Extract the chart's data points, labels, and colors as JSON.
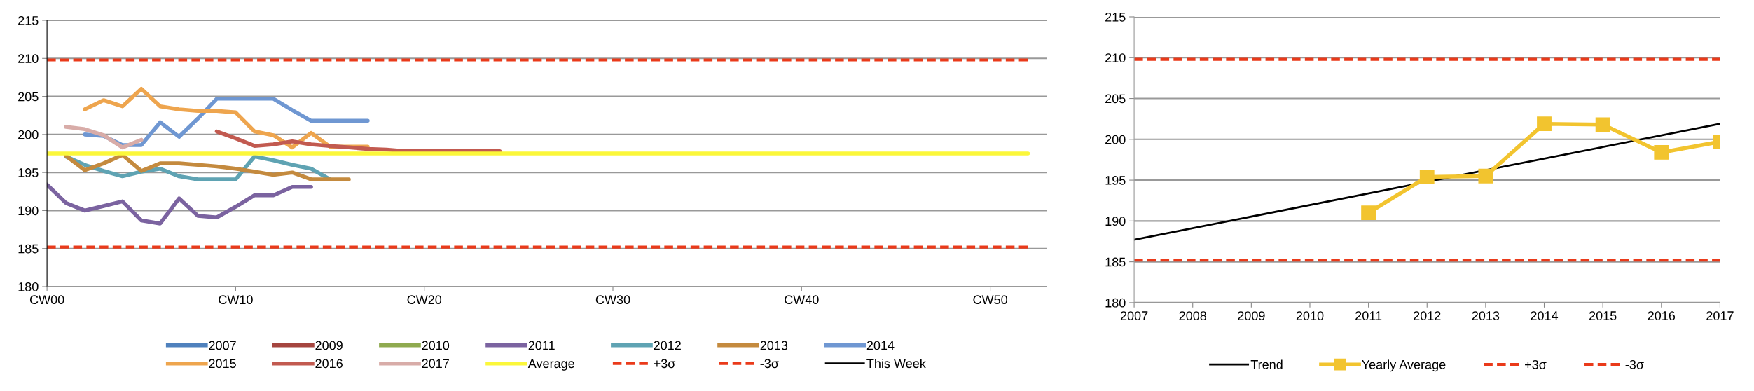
{
  "chart_data": [
    {
      "type": "line",
      "categories": [
        "CW00",
        null,
        null,
        null,
        null,
        null,
        null,
        null,
        null,
        null,
        "CW10",
        null,
        null,
        null,
        null,
        null,
        null,
        null,
        null,
        null,
        "CW20",
        null,
        null,
        null,
        null,
        null,
        null,
        null,
        null,
        null,
        "CW30",
        null,
        null,
        null,
        null,
        null,
        null,
        null,
        null,
        null,
        "CW40",
        null,
        null,
        null,
        null,
        null,
        null,
        null,
        null,
        null,
        "CW50",
        null,
        null
      ],
      "ylim": [
        180,
        215
      ],
      "yticks": [
        180,
        185,
        190,
        195,
        200,
        205,
        210,
        215
      ],
      "grid": "y",
      "legend": "bottom",
      "series": [
        {
          "name": "2007",
          "color": "#4f81bd",
          "values": [
            null,
            null,
            null,
            null,
            null,
            null,
            null,
            null,
            null,
            null,
            null,
            null,
            null,
            null,
            null,
            null,
            null,
            null,
            null,
            null,
            null,
            null,
            null,
            null,
            null,
            null,
            null,
            null,
            null,
            null,
            null,
            null,
            null,
            null,
            null,
            null,
            null,
            null,
            null,
            null,
            null,
            null,
            null,
            null,
            null,
            null,
            null,
            null,
            null,
            null,
            null,
            null,
            null
          ]
        },
        {
          "name": "2009",
          "color": "#a5453f",
          "values": [
            null,
            null,
            null,
            null,
            null,
            null,
            null,
            null,
            null,
            null,
            null,
            null,
            null,
            null,
            null,
            null,
            null,
            null,
            null,
            null,
            null,
            null,
            null,
            null,
            null,
            null,
            null,
            null,
            null,
            null,
            null,
            null,
            null,
            null,
            null,
            null,
            null,
            null,
            null,
            null,
            null,
            null,
            null,
            null,
            null,
            null,
            null,
            null,
            null,
            null,
            null,
            null,
            null
          ]
        },
        {
          "name": "2010",
          "color": "#8faa4f",
          "values": [
            null,
            null,
            null,
            null,
            null,
            null,
            null,
            null,
            null,
            null,
            null,
            null,
            null,
            null,
            null,
            null,
            null,
            null,
            null,
            null,
            null,
            null,
            null,
            null,
            null,
            null,
            null,
            null,
            null,
            null,
            null,
            null,
            null,
            null,
            null,
            null,
            null,
            null,
            null,
            null,
            null,
            null,
            null,
            null,
            null,
            null,
            null,
            null,
            null,
            null,
            null,
            null,
            null
          ]
        },
        {
          "name": "2011",
          "color": "#7b63a0",
          "values": [
            193.4,
            191.0,
            190.0,
            190.6,
            191.2,
            188.7,
            188.3,
            191.6,
            189.3,
            189.1,
            190.5,
            192.0,
            192.0,
            193.1,
            193.1,
            null,
            null,
            null,
            null,
            null,
            null,
            null,
            null,
            null,
            null,
            null,
            null,
            null,
            null,
            null,
            null,
            null,
            null,
            null,
            null,
            null,
            null,
            null,
            null,
            null,
            null,
            null,
            null,
            null,
            null,
            null,
            null,
            null,
            null,
            null,
            null,
            null,
            null
          ]
        },
        {
          "name": "2012",
          "color": "#5fa3b3",
          "values": [
            null,
            197.1,
            196.0,
            195.2,
            194.5,
            195.1,
            195.5,
            194.5,
            194.1,
            194.1,
            194.1,
            197.1,
            196.6,
            196.0,
            195.5,
            194.1,
            null,
            null,
            null,
            null,
            null,
            null,
            null,
            null,
            null,
            null,
            null,
            null,
            null,
            null,
            null,
            null,
            null,
            null,
            null,
            null,
            null,
            null,
            null,
            null,
            null,
            null,
            null,
            null,
            null,
            null,
            null,
            null,
            null,
            null,
            null,
            null,
            null
          ]
        },
        {
          "name": "2013",
          "color": "#c48a3e",
          "values": [
            null,
            197.2,
            195.3,
            196.2,
            197.3,
            195.2,
            196.2,
            196.2,
            196.0,
            195.8,
            195.5,
            195.1,
            194.7,
            195.0,
            194.1,
            194.1,
            194.1,
            null,
            null,
            null,
            null,
            null,
            null,
            null,
            null,
            null,
            null,
            null,
            null,
            null,
            null,
            null,
            null,
            null,
            null,
            null,
            null,
            null,
            null,
            null,
            null,
            null,
            null,
            null,
            null,
            null,
            null,
            null,
            null,
            null,
            null,
            null,
            null
          ]
        },
        {
          "name": "2014",
          "color": "#6f97d2",
          "values": [
            null,
            null,
            200.0,
            199.8,
            198.6,
            198.6,
            201.6,
            199.7,
            202.1,
            204.7,
            204.7,
            204.7,
            204.7,
            203.2,
            201.8,
            201.8,
            201.8,
            201.8,
            null,
            null,
            null,
            null,
            null,
            null,
            null,
            null,
            null,
            null,
            null,
            null,
            null,
            null,
            null,
            null,
            null,
            null,
            null,
            null,
            null,
            null,
            null,
            null,
            null,
            null,
            null,
            null,
            null,
            null,
            null,
            null,
            null,
            null,
            null
          ]
        },
        {
          "name": "2015",
          "color": "#eea54e",
          "values": [
            null,
            null,
            203.3,
            204.5,
            203.7,
            206.0,
            203.7,
            203.3,
            203.1,
            203.1,
            202.9,
            200.4,
            199.9,
            198.3,
            200.2,
            198.4,
            198.4,
            198.4,
            null,
            null,
            null,
            null,
            null,
            null,
            null,
            null,
            null,
            null,
            null,
            null,
            null,
            null,
            null,
            null,
            null,
            null,
            null,
            null,
            null,
            null,
            null,
            null,
            null,
            null,
            null,
            null,
            null,
            null,
            null,
            null,
            null,
            null,
            null
          ]
        },
        {
          "name": "2016",
          "color": "#c25a50",
          "values": [
            null,
            null,
            null,
            null,
            null,
            null,
            null,
            null,
            null,
            200.4,
            199.5,
            198.5,
            198.7,
            199.1,
            198.7,
            198.5,
            198.3,
            198.1,
            198.0,
            197.8,
            197.8,
            197.8,
            197.8,
            197.8,
            197.8,
            null,
            null,
            null,
            null,
            null,
            null,
            null,
            null,
            null,
            null,
            null,
            null,
            null,
            null,
            null,
            null,
            null,
            null,
            null,
            null,
            null,
            null,
            null,
            null,
            null,
            null,
            null,
            null
          ]
        },
        {
          "name": "2017",
          "color": "#d8aca8",
          "values": [
            null,
            201.0,
            200.7,
            199.9,
            198.3,
            199.3,
            null,
            null,
            null,
            null,
            null,
            null,
            null,
            null,
            null,
            null,
            null,
            null,
            null,
            null,
            null,
            null,
            null,
            null,
            null,
            null,
            null,
            null,
            null,
            null,
            null,
            null,
            null,
            null,
            null,
            null,
            null,
            null,
            null,
            null,
            null,
            null,
            null,
            null,
            null,
            null,
            null,
            null,
            null,
            null,
            null,
            null,
            null
          ]
        },
        {
          "name": "Average",
          "color": "#fbf73a",
          "values": [
            197.5,
            197.5,
            197.5,
            197.5,
            197.5,
            197.5,
            197.5,
            197.5,
            197.5,
            197.5,
            197.5,
            197.5,
            197.5,
            197.5,
            197.5,
            197.5,
            197.5,
            197.5,
            197.5,
            197.5,
            197.5,
            197.5,
            197.5,
            197.5,
            197.5,
            197.5,
            197.5,
            197.5,
            197.5,
            197.5,
            197.5,
            197.5,
            197.5,
            197.5,
            197.5,
            197.5,
            197.5,
            197.5,
            197.5,
            197.5,
            197.5,
            197.5,
            197.5,
            197.5,
            197.5,
            197.5,
            197.5,
            197.5,
            197.5,
            197.5,
            197.5,
            197.5,
            197.5
          ]
        },
        {
          "name": "+3σ",
          "color": "#ea3a1a",
          "line_style": "dashed",
          "values": [
            209.8,
            209.8,
            209.8,
            209.8,
            209.8,
            209.8,
            209.8,
            209.8,
            209.8,
            209.8,
            209.8,
            209.8,
            209.8,
            209.8,
            209.8,
            209.8,
            209.8,
            209.8,
            209.8,
            209.8,
            209.8,
            209.8,
            209.8,
            209.8,
            209.8,
            209.8,
            209.8,
            209.8,
            209.8,
            209.8,
            209.8,
            209.8,
            209.8,
            209.8,
            209.8,
            209.8,
            209.8,
            209.8,
            209.8,
            209.8,
            209.8,
            209.8,
            209.8,
            209.8,
            209.8,
            209.8,
            209.8,
            209.8,
            209.8,
            209.8,
            209.8,
            209.8,
            209.8
          ]
        },
        {
          "name": "-3σ",
          "color": "#ea3a1a",
          "line_style": "dashed",
          "values": [
            185.2,
            185.2,
            185.2,
            185.2,
            185.2,
            185.2,
            185.2,
            185.2,
            185.2,
            185.2,
            185.2,
            185.2,
            185.2,
            185.2,
            185.2,
            185.2,
            185.2,
            185.2,
            185.2,
            185.2,
            185.2,
            185.2,
            185.2,
            185.2,
            185.2,
            185.2,
            185.2,
            185.2,
            185.2,
            185.2,
            185.2,
            185.2,
            185.2,
            185.2,
            185.2,
            185.2,
            185.2,
            185.2,
            185.2,
            185.2,
            185.2,
            185.2,
            185.2,
            185.2,
            185.2,
            185.2,
            185.2,
            185.2,
            185.2,
            185.2,
            185.2,
            185.2,
            185.2
          ]
        },
        {
          "name": "This Week",
          "color": "#000000",
          "values": [
            null,
            null,
            null,
            null,
            null,
            null,
            null,
            null,
            null,
            null,
            null,
            null,
            null,
            null,
            null,
            null,
            null,
            null,
            null,
            null,
            null,
            null,
            null,
            null,
            null,
            null,
            null,
            null,
            null,
            null,
            null,
            null,
            null,
            null,
            null,
            null,
            null,
            null,
            null,
            null,
            null,
            null,
            null,
            null,
            null,
            null,
            null,
            null,
            null,
            null,
            null,
            null,
            null
          ]
        }
      ]
    },
    {
      "type": "line",
      "xlim": [
        2007,
        2017
      ],
      "xticks": [
        2007,
        2008,
        2009,
        2010,
        2011,
        2012,
        2013,
        2014,
        2015,
        2016,
        2017
      ],
      "ylim": [
        180,
        215
      ],
      "yticks": [
        180,
        185,
        190,
        195,
        200,
        205,
        210,
        215
      ],
      "grid": "y",
      "legend": "bottom",
      "series": [
        {
          "name": "Trend",
          "color": "#000000",
          "x": [
            2007,
            2017
          ],
          "values": [
            187.7,
            201.9
          ]
        },
        {
          "name": "Yearly Average",
          "color": "#f2c42f",
          "marker": "square",
          "x": [
            2011,
            2012,
            2013,
            2014,
            2015,
            2016,
            2017
          ],
          "values": [
            191.0,
            195.4,
            195.5,
            201.9,
            201.8,
            198.4,
            199.7
          ]
        },
        {
          "name": "+3σ",
          "color": "#ea3a1a",
          "line_style": "dashed",
          "x": [
            2007,
            2017
          ],
          "values": [
            209.8,
            209.8
          ]
        },
        {
          "name": "-3σ",
          "color": "#ea3a1a",
          "line_style": "dashed",
          "x": [
            2007,
            2017
          ],
          "values": [
            185.2,
            185.2
          ]
        }
      ]
    }
  ]
}
